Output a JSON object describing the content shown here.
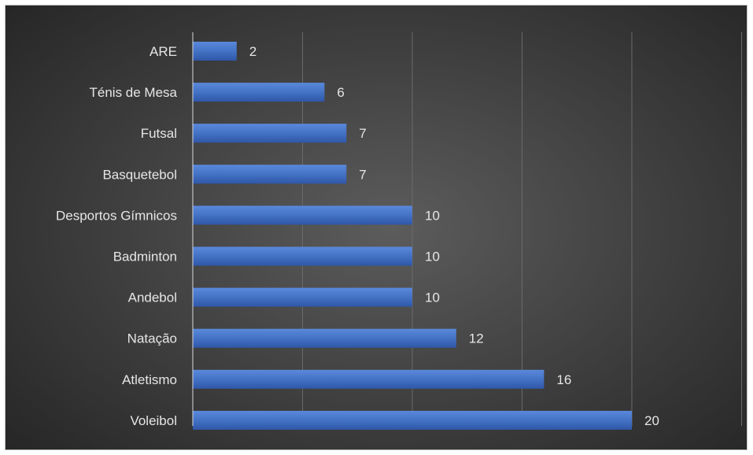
{
  "chart_data": {
    "type": "bar",
    "orientation": "horizontal",
    "categories": [
      "ARE",
      "Ténis de Mesa",
      "Futsal",
      "Basquetebol",
      "Desportos Gímnicos",
      "Badminton",
      "Andebol",
      "Natação",
      "Atletismo",
      "Voleibol"
    ],
    "values": [
      2,
      6,
      7,
      7,
      10,
      10,
      10,
      12,
      16,
      20
    ],
    "title": "",
    "xlabel": "",
    "ylabel": "",
    "xlim": [
      0,
      25
    ],
    "grid": true,
    "legend": "none",
    "colors": {
      "bar": "#4472c4",
      "bar_dark": "#2f57a8",
      "background": "#3e3e3e",
      "gridline": "#6a6a6a",
      "text": "#e6e6e6"
    }
  }
}
